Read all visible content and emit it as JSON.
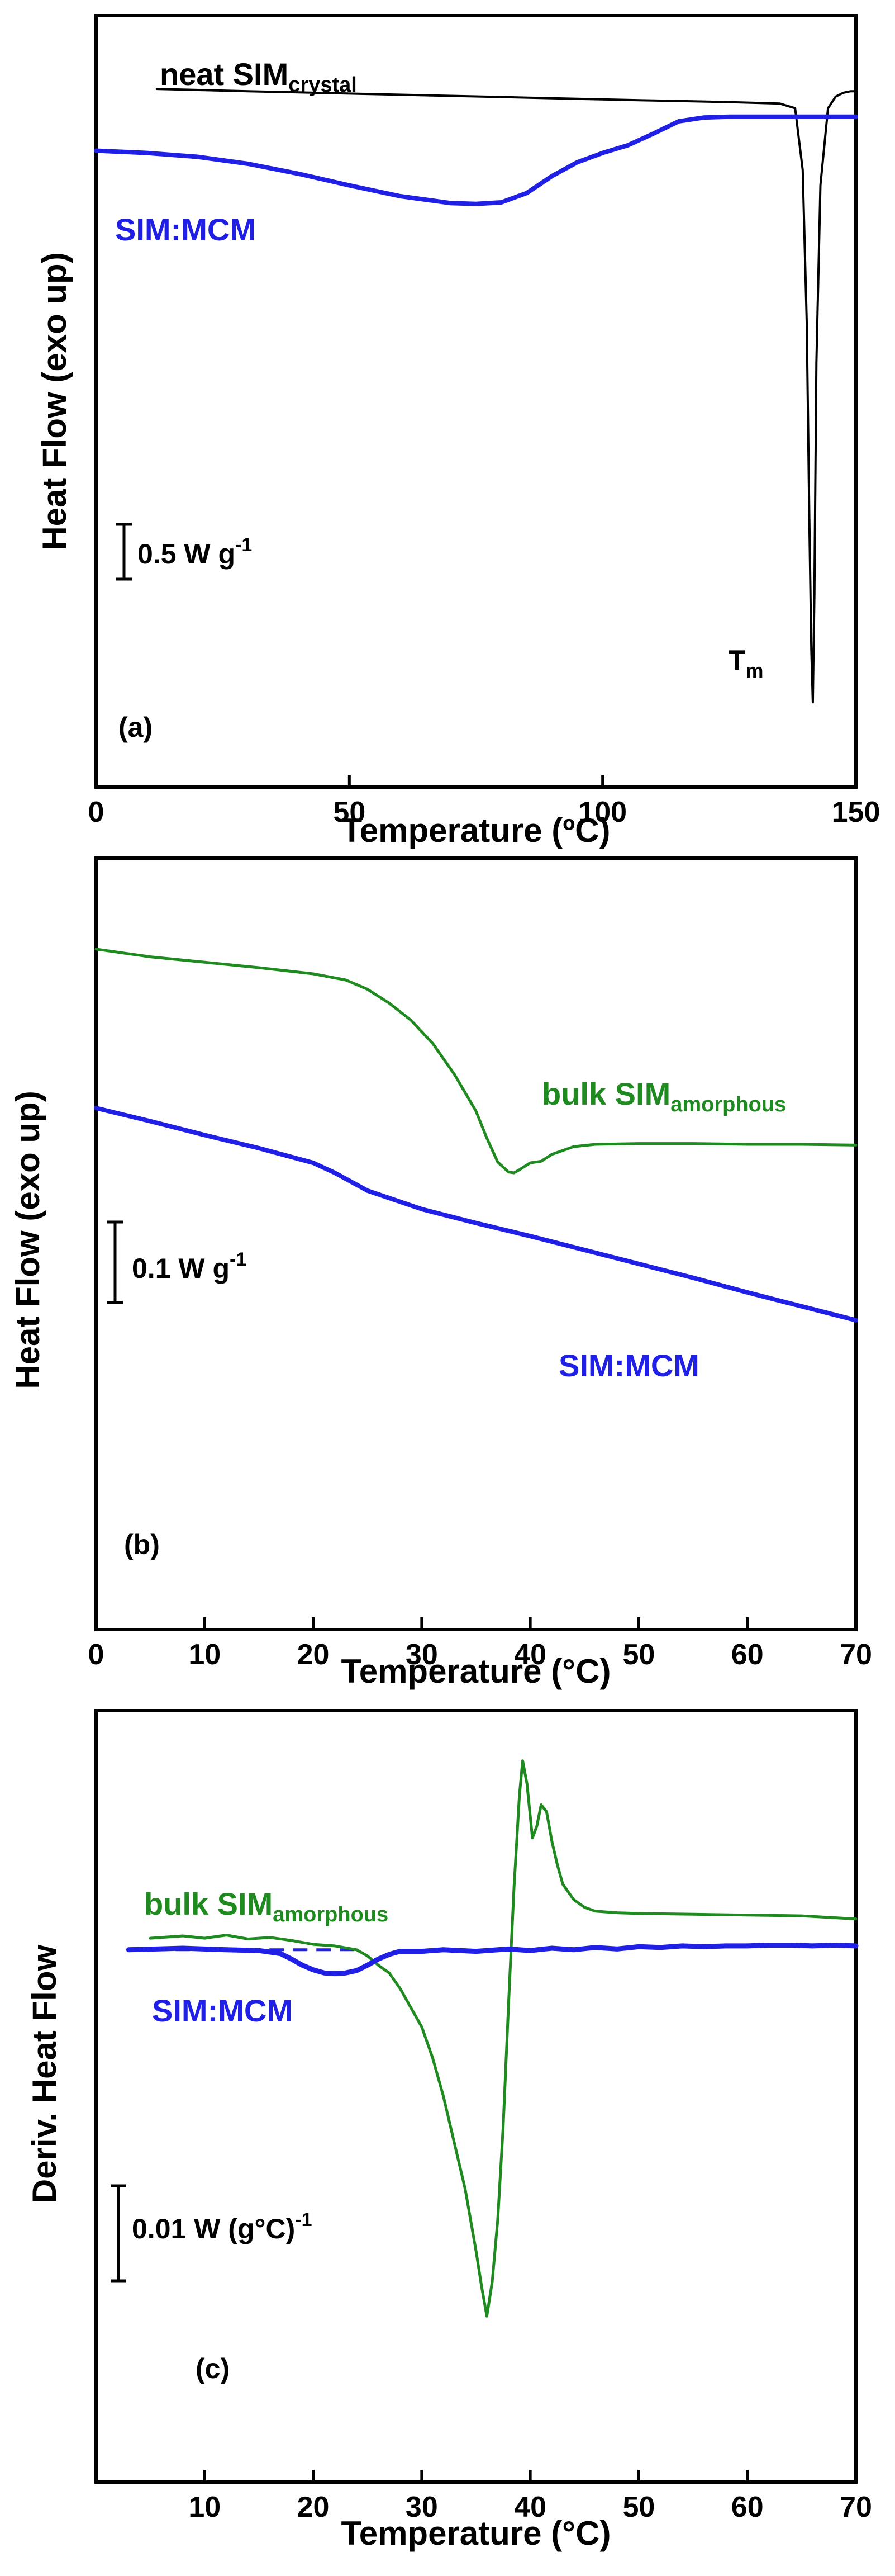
{
  "figure": {
    "colors": {
      "black": "#000000",
      "blue": "#1f1fe6",
      "green": "#1f8a1f"
    }
  },
  "chart_data": [
    {
      "panel": "(a)",
      "type": "line",
      "xlabel": "Temperature (ºC)",
      "ylabel": "Heat Flow (exo up)",
      "xlim": [
        0,
        150
      ],
      "ylim": [
        0,
        1
      ],
      "xticks": [
        0,
        50,
        100,
        150
      ],
      "xtick_labels": [
        "0",
        "50",
        "100",
        "150"
      ],
      "scale_bar": {
        "label": "0.5 W g",
        "sup": "-1"
      },
      "annotations": [
        {
          "name": "tm-label",
          "text": "T",
          "sub": "m"
        }
      ],
      "series": [
        {
          "name": "neat SIM",
          "sub": "crystal",
          "color": "#000000",
          "x": [
            12,
            30,
            50,
            70,
            90,
            110,
            125,
            135,
            138,
            139.5,
            140.3,
            140.8,
            141.2,
            141.5,
            141.8,
            142.2,
            143,
            144.5,
            146,
            147.5,
            149,
            150
          ],
          "y": [
            0.905,
            0.902,
            0.899,
            0.896,
            0.893,
            0.89,
            0.888,
            0.886,
            0.88,
            0.8,
            0.6,
            0.35,
            0.18,
            0.11,
            0.25,
            0.55,
            0.78,
            0.88,
            0.895,
            0.9,
            0.902,
            0.902
          ]
        },
        {
          "name": "SIM:MCM",
          "color": "#1f1fe6",
          "x": [
            0,
            10,
            20,
            30,
            40,
            50,
            60,
            70,
            75,
            80,
            85,
            90,
            95,
            100,
            105,
            110,
            115,
            120,
            125,
            130,
            140,
            150
          ],
          "y": [
            0.825,
            0.822,
            0.817,
            0.808,
            0.795,
            0.78,
            0.766,
            0.757,
            0.756,
            0.758,
            0.77,
            0.792,
            0.81,
            0.822,
            0.832,
            0.847,
            0.863,
            0.868,
            0.869,
            0.869,
            0.869,
            0.869
          ]
        }
      ]
    },
    {
      "panel": "(b)",
      "type": "line",
      "xlabel": "Temperature (°C)",
      "ylabel": "Heat Flow (exo up)",
      "xlim": [
        0,
        70
      ],
      "ylim": [
        0,
        1
      ],
      "xticks": [
        0,
        10,
        20,
        30,
        40,
        50,
        60,
        70
      ],
      "xtick_labels": [
        "0",
        "10",
        "20",
        "30",
        "40",
        "50",
        "60",
        "70"
      ],
      "scale_bar": {
        "label": "0.1 W g",
        "sup": "-1"
      },
      "series": [
        {
          "name": "bulk SIM",
          "sub": "amorphous",
          "color": "#1f8a1f",
          "x": [
            0,
            5,
            10,
            15,
            20,
            23,
            25,
            27,
            29,
            31,
            33,
            35,
            36,
            37,
            38,
            38.5,
            39,
            40,
            41,
            42,
            44,
            46,
            50,
            55,
            60,
            65,
            70
          ],
          "y": [
            0.882,
            0.872,
            0.865,
            0.858,
            0.85,
            0.842,
            0.83,
            0.812,
            0.79,
            0.76,
            0.72,
            0.672,
            0.637,
            0.606,
            0.593,
            0.592,
            0.596,
            0.605,
            0.607,
            0.616,
            0.626,
            0.629,
            0.63,
            0.63,
            0.629,
            0.629,
            0.628
          ]
        },
        {
          "name": "SIM:MCM",
          "color": "#1f1fe6",
          "x": [
            0,
            5,
            10,
            15,
            20,
            22,
            25,
            30,
            35,
            40,
            45,
            50,
            55,
            60,
            65,
            70
          ],
          "y": [
            0.676,
            0.659,
            0.641,
            0.624,
            0.605,
            0.592,
            0.569,
            0.545,
            0.527,
            0.51,
            0.492,
            0.474,
            0.456,
            0.437,
            0.419,
            0.401
          ]
        }
      ]
    },
    {
      "panel": "(c)",
      "type": "line",
      "xlabel": "Temperature (°C)",
      "ylabel": "Deriv. Heat Flow",
      "xlim": [
        0,
        70
      ],
      "ylim": [
        0,
        1
      ],
      "xticks": [
        10,
        20,
        30,
        40,
        50,
        60,
        70
      ],
      "xtick_labels": [
        "10",
        "20",
        "30",
        "40",
        "50",
        "60",
        "70"
      ],
      "scale_bar": {
        "label": "0.01 W (g°C)",
        "sup": "-1"
      },
      "baseline": {
        "x": [
          3,
          24
        ],
        "y": 0.69
      },
      "series": [
        {
          "name": "bulk SIM",
          "sub": "amorphous",
          "color": "#1f8a1f",
          "x": [
            5,
            8,
            10,
            12,
            14,
            16,
            18,
            20,
            22,
            24,
            25,
            26,
            27,
            28,
            29,
            30,
            31,
            32,
            33,
            34,
            35,
            35.5,
            36,
            36.5,
            37,
            37.5,
            38,
            38.5,
            39,
            39.3,
            39.7,
            40.2,
            40.6,
            41,
            41.5,
            42,
            42.5,
            43,
            44,
            45,
            46,
            48,
            50,
            55,
            60,
            65,
            70
          ],
          "y": [
            0.705,
            0.708,
            0.705,
            0.709,
            0.704,
            0.706,
            0.702,
            0.697,
            0.695,
            0.69,
            0.682,
            0.67,
            0.66,
            0.64,
            0.615,
            0.59,
            0.55,
            0.5,
            0.44,
            0.38,
            0.3,
            0.255,
            0.215,
            0.26,
            0.34,
            0.46,
            0.62,
            0.77,
            0.89,
            0.935,
            0.905,
            0.835,
            0.85,
            0.878,
            0.869,
            0.83,
            0.8,
            0.775,
            0.755,
            0.745,
            0.74,
            0.738,
            0.737,
            0.736,
            0.735,
            0.734,
            0.73
          ]
        },
        {
          "name": "SIM:MCM",
          "color": "#1f1fe6",
          "x": [
            3,
            8,
            12,
            15,
            17,
            18,
            19,
            20,
            21,
            22,
            23,
            24,
            25,
            26,
            27,
            28,
            30,
            32,
            35,
            38,
            40,
            42,
            44,
            46,
            48,
            50,
            52,
            54,
            56,
            58,
            60,
            62,
            64,
            66,
            68,
            70
          ],
          "y": [
            0.69,
            0.692,
            0.69,
            0.689,
            0.685,
            0.678,
            0.67,
            0.664,
            0.66,
            0.659,
            0.66,
            0.663,
            0.67,
            0.678,
            0.684,
            0.688,
            0.688,
            0.69,
            0.688,
            0.691,
            0.689,
            0.692,
            0.69,
            0.693,
            0.691,
            0.694,
            0.693,
            0.695,
            0.694,
            0.695,
            0.695,
            0.696,
            0.696,
            0.695,
            0.696,
            0.695
          ]
        }
      ]
    }
  ]
}
